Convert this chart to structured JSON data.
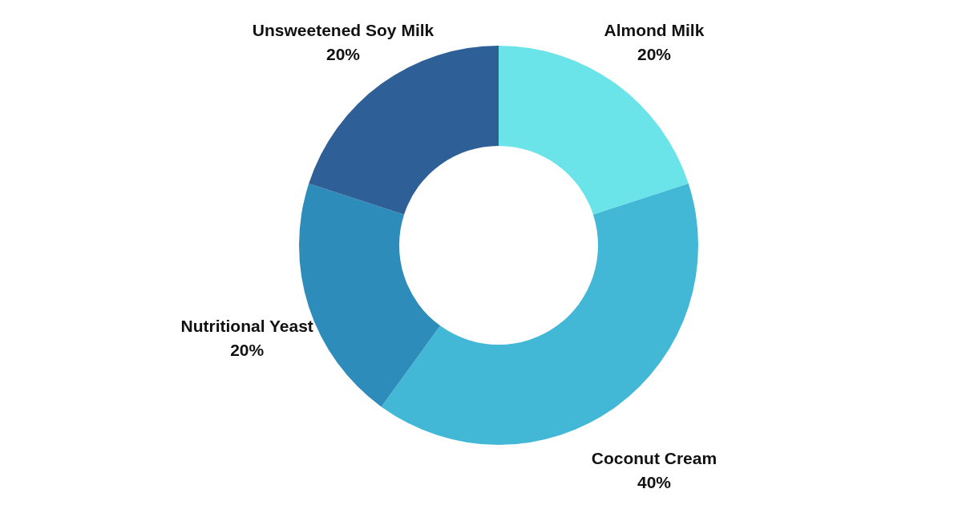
{
  "chart_data": {
    "type": "donut",
    "categories": [
      "Almond Milk",
      "Coconut Cream",
      "Nutritional Yeast",
      "Unsweetened Soy Milk"
    ],
    "values": [
      20,
      40,
      20,
      20
    ],
    "value_labels": [
      "20%",
      "40%",
      "20%",
      "20%"
    ],
    "colors": [
      "#6ae4e8",
      "#42b8d6",
      "#2e8cba",
      "#2e6097"
    ]
  }
}
